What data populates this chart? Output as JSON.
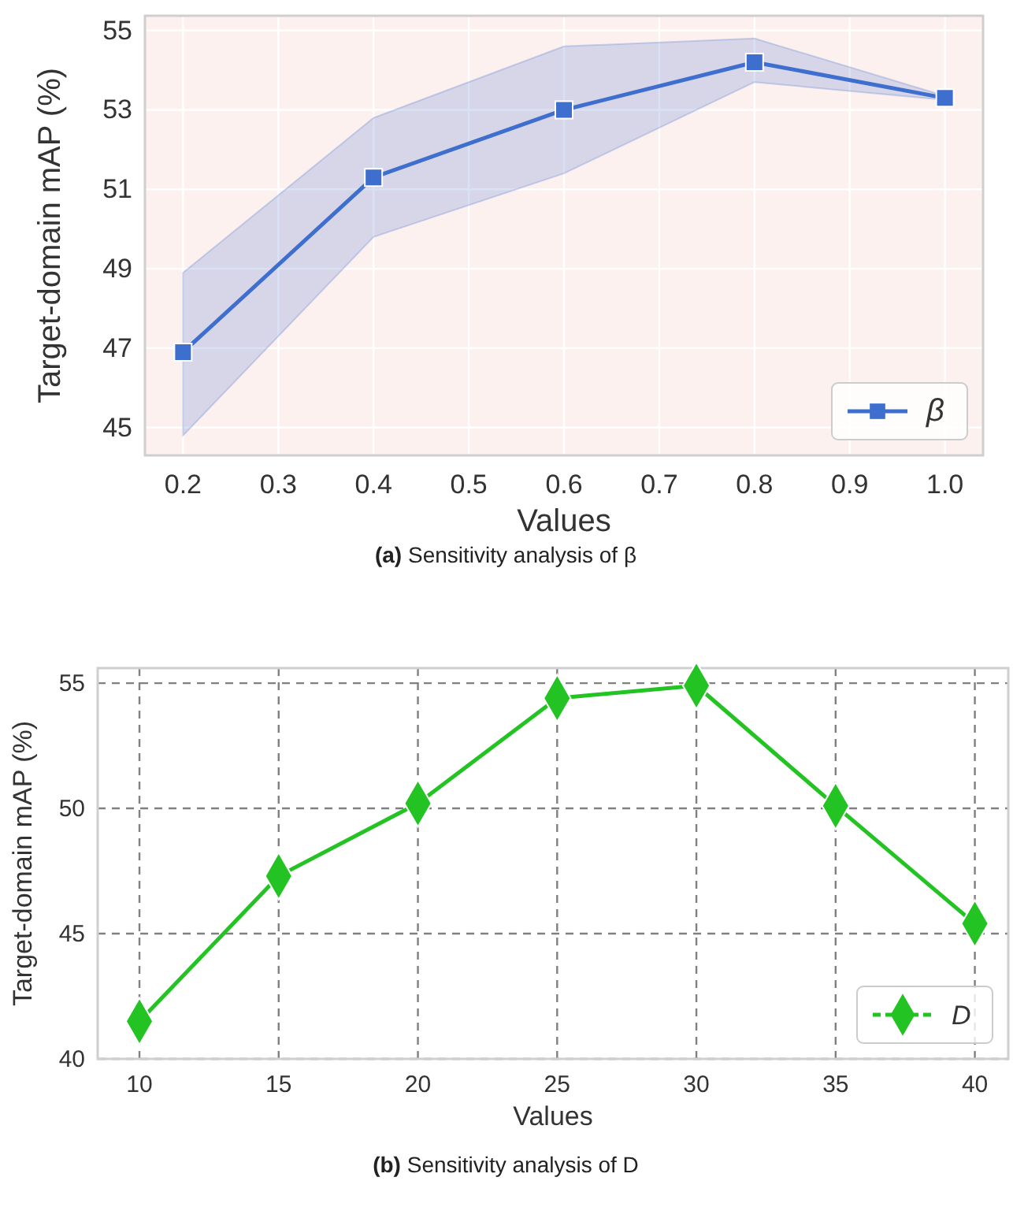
{
  "chart_data": [
    {
      "type": "line",
      "xlabel": "Values",
      "ylabel": "Target-domain mAP (%)",
      "annotations": [
        "(a) Sensitivity analysis of β"
      ],
      "x": [
        0.2,
        0.4,
        0.6,
        0.8,
        1.0
      ],
      "series": [
        {
          "name": "β",
          "color": "#3f6fce",
          "values": [
            46.9,
            51.3,
            53.0,
            54.2,
            53.3
          ],
          "lower": [
            44.8,
            49.8,
            51.4,
            53.7,
            53.25
          ],
          "upper": [
            48.9,
            52.8,
            54.6,
            54.8,
            53.35
          ]
        }
      ],
      "xlim": [
        0.16,
        1.04
      ],
      "xticks": [
        0.2,
        0.3,
        0.4,
        0.5,
        0.6,
        0.7,
        0.8,
        0.9,
        {
          "value": 1,
          "label": "1.0"
        }
      ],
      "ylim": [
        44.3,
        55.37
      ],
      "yticks": [
        45,
        47,
        49,
        51,
        53,
        55
      ],
      "grid": true,
      "legend": "bottom right",
      "marker": "square",
      "line_style": "solid"
    },
    {
      "type": "line",
      "xlabel": "Values",
      "ylabel": "Target-domain mAP (%)",
      "annotations": [
        "(b) Sensitivity analysis of D"
      ],
      "x": [
        10,
        15,
        20,
        25,
        30,
        35,
        40
      ],
      "series": [
        {
          "name": "D",
          "color": "#22c322",
          "values": [
            41.5,
            47.3,
            50.2,
            54.4,
            54.9,
            50.1,
            45.4
          ]
        }
      ],
      "xlim": [
        8.5,
        41.2
      ],
      "xticks": [
        10,
        15,
        20,
        25,
        30,
        35,
        40
      ],
      "ylim": [
        40,
        55.6
      ],
      "yticks": [
        40,
        45,
        50,
        55
      ],
      "grid": true,
      "legend": "bottom right",
      "marker": "diamond",
      "line_style": "solid"
    }
  ]
}
